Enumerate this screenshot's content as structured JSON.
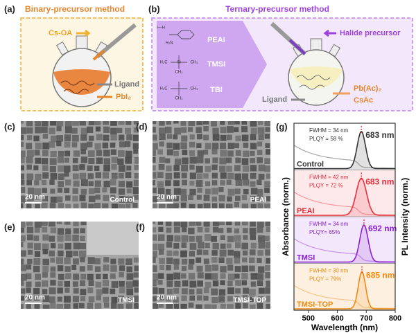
{
  "panel_a": {
    "label": "(a)",
    "title": "Binary-precursor method",
    "reagent": "Cs-OA",
    "ligand": "Ligand",
    "precursor": "PbI₂"
  },
  "panel_b": {
    "label": "(b)",
    "title": "Ternary-precursor method",
    "additives": [
      "PEAI",
      "TMSI",
      "TBI"
    ],
    "structures": [
      [
        "I—H",
        "H₂N"
      ],
      [
        "H₃C",
        "Si",
        "CH₃",
        "CH₃"
      ],
      [
        "H₃C",
        "CH₃",
        "CH₃"
      ]
    ],
    "halide": "Halide precursor",
    "ligand": "Ligand",
    "precursors": [
      "Pb(Ac)₂",
      "CsAc"
    ]
  },
  "tem": [
    {
      "label": "(c)",
      "scale": "20 nm",
      "sample": "Control"
    },
    {
      "label": "(d)",
      "scale": "20 nm",
      "sample": "PEAI"
    },
    {
      "label": "(e)",
      "scale": "20 nm",
      "sample": "TMSI"
    },
    {
      "label": "(f)",
      "scale": "20 nm",
      "sample": "TMSI-TOP"
    }
  ],
  "chart_data": {
    "type": "spectra",
    "label": "(g)",
    "xlabel": "Wavelength (nm)",
    "ylabel": "Absorbance (norm.)",
    "y2label": "PL Intensity (norm.)",
    "xlim": [
      450,
      800
    ],
    "xticks": [
      500,
      600,
      700,
      800
    ],
    "series": [
      {
        "name": "Control",
        "color": "#333333",
        "background": "#ffffff",
        "peak": 683,
        "peak_label": "683 nm",
        "fwhm": 34,
        "fwhm_label": "FWHM = 34 nm",
        "plqy": 58,
        "plqy_label": "PLQY = 58 %"
      },
      {
        "name": "PEAI",
        "color": "#e8303c",
        "background": "#fde8ea",
        "peak": 683,
        "peak_label": "683 nm",
        "fwhm": 42,
        "fwhm_label": "FWHM = 42 nm",
        "plqy": 72,
        "plqy_label": "PLQY = 72 %"
      },
      {
        "name": "TMSI",
        "color": "#8a1fd6",
        "background": "#f3e8fb",
        "peak": 692,
        "peak_label": "692 nm",
        "fwhm": 34,
        "fwhm_label": "FWHM = 34 nm",
        "plqy": 65,
        "plqy_label": "PLQY= 65%"
      },
      {
        "name": "TMSI-TOP",
        "color": "#f08a12",
        "background": "#fdf0e0",
        "peak": 685,
        "peak_label": "685 nm",
        "fwhm": 30,
        "fwhm_label": "FWHM = 30 nm",
        "plqy": 79,
        "plqy_label": "PLQY = 79%"
      }
    ]
  }
}
